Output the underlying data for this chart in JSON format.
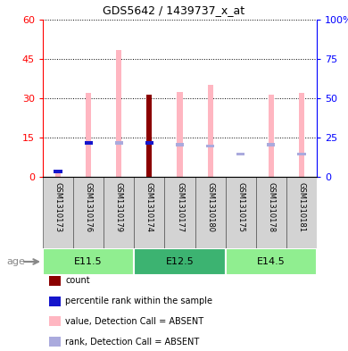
{
  "title": "GDS5642 / 1439737_x_at",
  "samples": [
    "GSM1310173",
    "GSM1310176",
    "GSM1310179",
    "GSM1310174",
    "GSM1310177",
    "GSM1310180",
    "GSM1310175",
    "GSM1310178",
    "GSM1310181"
  ],
  "age_groups": [
    {
      "label": "E11.5",
      "start": 0,
      "end": 3,
      "color": "#90EE90"
    },
    {
      "label": "E12.5",
      "start": 3,
      "end": 6,
      "color": "#3CB371"
    },
    {
      "label": "E14.5",
      "start": 6,
      "end": 9,
      "color": "#90EE90"
    }
  ],
  "value_absent": [
    1.5,
    32.0,
    48.5,
    0.0,
    32.5,
    35.0,
    0.0,
    31.5,
    32.0
  ],
  "rank_absent": [
    0.0,
    21.5,
    21.5,
    0.0,
    20.5,
    19.5,
    14.5,
    20.5,
    14.5
  ],
  "count_val": [
    0.0,
    0.0,
    0.0,
    31.5,
    0.0,
    0.0,
    0.0,
    0.0,
    0.0
  ],
  "pct_rank_val": [
    3.5,
    21.5,
    0.0,
    21.5,
    0.0,
    0.0,
    0.0,
    0.0,
    0.0
  ],
  "ylim_left": [
    0,
    60
  ],
  "ylim_right": [
    0,
    100
  ],
  "yticks_left": [
    0,
    15,
    30,
    45,
    60
  ],
  "yticks_right": [
    0,
    25,
    50,
    75,
    100
  ],
  "color_count": "#8B0000",
  "color_pct_rank": "#1515CC",
  "color_value_absent": "#FFB6C1",
  "color_rank_absent": "#AAAADD",
  "legend_items": [
    {
      "label": "count",
      "color": "#8B0000"
    },
    {
      "label": "percentile rank within the sample",
      "color": "#1515CC"
    },
    {
      "label": "value, Detection Call = ABSENT",
      "color": "#FFB6C1"
    },
    {
      "label": "rank, Detection Call = ABSENT",
      "color": "#AAAADD"
    }
  ]
}
